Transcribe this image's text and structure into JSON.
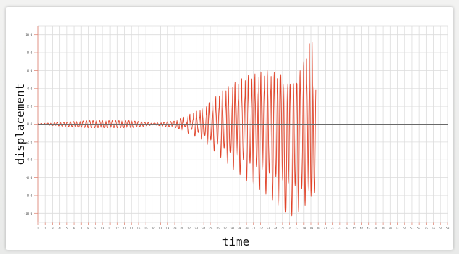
{
  "chart_data": {
    "type": "line",
    "title": "",
    "xlabel": "time",
    "ylabel": "displacement",
    "xlim": [
      1,
      58
    ],
    "ylim": [
      -11,
      11
    ],
    "x_ticks": [
      "1",
      "2",
      "3",
      "4",
      "5",
      "6",
      "7",
      "8",
      "9",
      "10",
      "11",
      "12",
      "13",
      "14",
      "15",
      "16",
      "17",
      "18",
      "19",
      "20",
      "21",
      "22",
      "23",
      "24",
      "25",
      "26",
      "27",
      "28",
      "29",
      "30",
      "31",
      "32",
      "33",
      "34",
      "35",
      "36",
      "37",
      "38",
      "39",
      "40",
      "41",
      "42",
      "43",
      "44",
      "45",
      "46",
      "47",
      "48",
      "49",
      "50",
      "51",
      "52",
      "53",
      "54",
      "55",
      "56",
      "57",
      "58"
    ],
    "y_ticks": [
      "10.0",
      "8.0",
      "6.0",
      "4.0",
      "2.0",
      "0.0",
      "-2.0",
      "-4.0",
      "-6.0",
      "-8.0",
      "-10.0"
    ],
    "grid": true,
    "legend": "none",
    "series": [
      {
        "color": "#e0442a",
        "baseline": 0,
        "x_end": 39.7,
        "envelope": {
          "x": [
            1,
            8,
            14,
            17,
            20,
            24,
            27,
            30,
            33,
            35,
            36,
            37,
            38,
            39,
            39.7
          ],
          "upper": [
            0.05,
            0.4,
            0.4,
            0.1,
            0.35,
            1.8,
            4.0,
            5.4,
            6.0,
            5.5,
            4.0,
            5.0,
            7.2,
            9.5,
            10.6
          ],
          "lower": [
            -0.05,
            -0.4,
            -0.4,
            -0.1,
            -0.35,
            -1.8,
            -4.2,
            -6.3,
            -8.0,
            -9.5,
            -10.4,
            -10.0,
            -9.3,
            -8.1,
            -7.8
          ]
        },
        "inner_envelope": {
          "x": [
            21,
            24,
            27,
            30,
            33,
            35,
            37,
            39,
            39.7
          ],
          "upper": [
            0.1,
            1.0,
            2.2,
            3.2,
            4.0,
            4.4,
            4.6,
            4.4,
            4.3
          ],
          "lower": [
            -0.1,
            -1.2,
            -2.8,
            -4.2,
            -5.4,
            -6.3,
            -7.0,
            -7.6,
            -7.8
          ]
        },
        "oscillation_period": 0.45
      }
    ]
  },
  "colors": {
    "grid": "#dcdcdc",
    "axis_line": "#e08a7a",
    "zero_line": "#6a6a6a",
    "signal": "#e0442a"
  }
}
